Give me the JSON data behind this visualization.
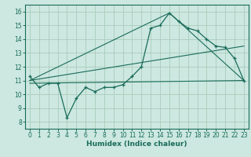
{
  "title": "",
  "xlabel": "Humidex (Indice chaleur)",
  "background_color": "#cce8e0",
  "grid_color": "#aaccbb",
  "line_color": "#1a6b5a",
  "xlim": [
    -0.5,
    23.5
  ],
  "ylim": [
    7.5,
    16.5
  ],
  "x_ticks": [
    0,
    1,
    2,
    3,
    4,
    5,
    6,
    7,
    8,
    9,
    10,
    11,
    12,
    13,
    14,
    15,
    16,
    17,
    18,
    19,
    20,
    21,
    22,
    23
  ],
  "y_ticks": [
    8,
    9,
    10,
    11,
    12,
    13,
    14,
    15,
    16
  ],
  "line1_x": [
    0,
    1,
    2,
    3,
    4,
    5,
    6,
    7,
    8,
    9,
    10,
    11,
    12,
    13,
    14,
    15,
    16,
    17,
    18,
    19,
    20,
    21,
    22,
    23
  ],
  "line1_y": [
    11.3,
    10.5,
    10.8,
    10.8,
    8.3,
    9.7,
    10.5,
    10.2,
    10.5,
    10.5,
    10.7,
    11.3,
    12.0,
    14.8,
    15.0,
    15.9,
    15.3,
    14.8,
    14.6,
    14.0,
    13.5,
    13.4,
    12.6,
    11.0
  ],
  "line2_x": [
    0,
    23
  ],
  "line2_y": [
    11.0,
    13.5
  ],
  "line3_x": [
    0,
    15,
    23
  ],
  "line3_y": [
    11.0,
    15.9,
    11.0
  ],
  "line4_x": [
    0,
    23
  ],
  "line4_y": [
    10.8,
    11.0
  ],
  "tick_fontsize": 5.5,
  "xlabel_fontsize": 6.5
}
